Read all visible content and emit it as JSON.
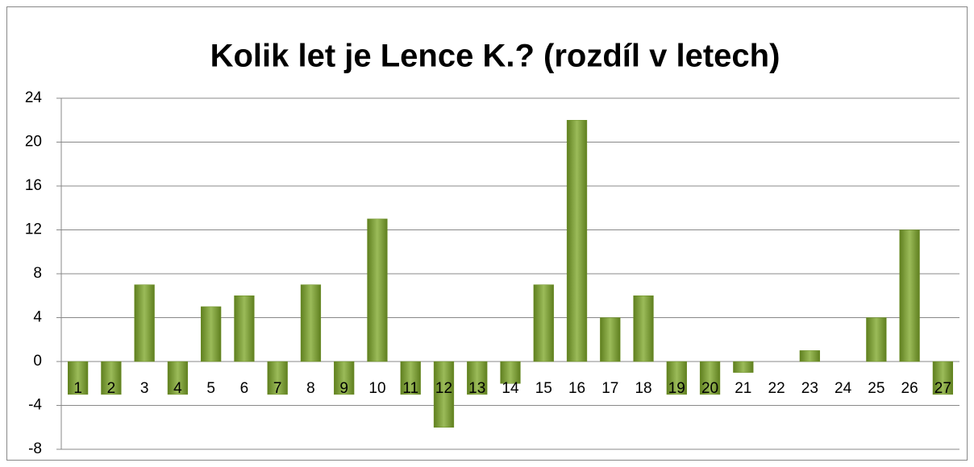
{
  "chart_data": {
    "type": "bar",
    "title": "Kolik let je Lence K.? (rozdíl v letech)",
    "categories": [
      "1",
      "2",
      "3",
      "4",
      "5",
      "6",
      "7",
      "8",
      "9",
      "10",
      "11",
      "12",
      "13",
      "14",
      "15",
      "16",
      "17",
      "18",
      "19",
      "20",
      "21",
      "22",
      "23",
      "24",
      "25",
      "26",
      "27"
    ],
    "values": [
      -3,
      -3,
      7,
      -3,
      5,
      6,
      -3,
      7,
      -3,
      13,
      -3,
      -6,
      -3,
      -2,
      7,
      22,
      4,
      6,
      -3,
      -3,
      -1,
      0,
      1,
      0,
      4,
      12,
      -3
    ],
    "color": "#9bbb59",
    "ylim": [
      -8,
      24
    ],
    "yticks": [
      -8,
      -4,
      0,
      4,
      8,
      12,
      16,
      20,
      24
    ],
    "grid": true
  }
}
